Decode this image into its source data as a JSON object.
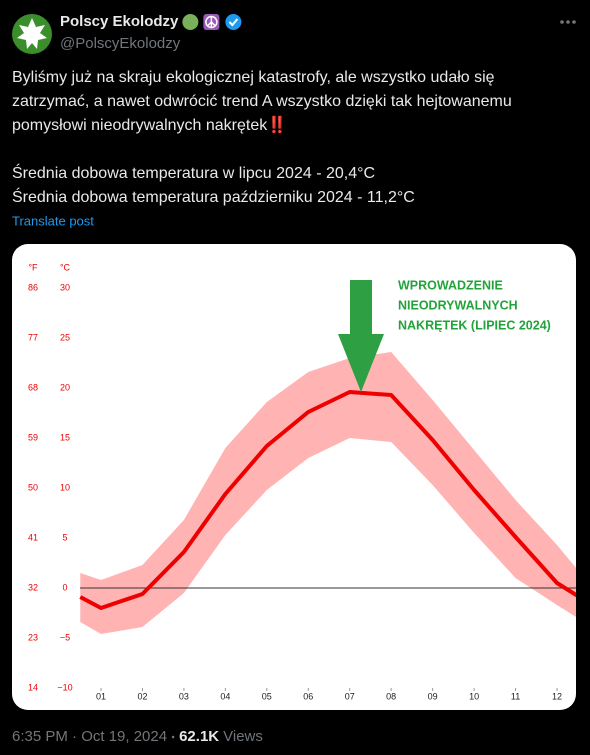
{
  "tweet": {
    "author": "Polscy Ekolodzy",
    "handle": "@PolscyEkolodzy",
    "paragraphs": [
      [
        "Byliśmy już na skraju ekologicznej katastrofy, ale wszystko udało się",
        "zatrzymać, a nawet odwrócić trend A wszystko dzięki tak hejtowanemu",
        "pomysłowi  nieodrywalnych nakrętek‼️"
      ],
      [
        "Średnia dobowa temperatura w lipcu 2024  - 20,4°C",
        "Średnia dobowa temperatura październiku 2024 - 11,2°C"
      ]
    ],
    "translate": "Translate post",
    "timestamp": "6:35 PM · Oct 19, 2024",
    "views_count": "62.1K",
    "views_label": "Views"
  },
  "chart_data": {
    "type": "line",
    "x": [
      0.5,
      1,
      2,
      3,
      4,
      5,
      6,
      7,
      8,
      9,
      10,
      11,
      12,
      12.5
    ],
    "values": [
      -0.9,
      -2,
      -0.6,
      3.6,
      9.4,
      14.2,
      17.6,
      19.6,
      19.3,
      14.8,
      9.8,
      5.1,
      0.5,
      -0.8
    ],
    "band_upper": [
      1.5,
      0.8,
      2.3,
      6.8,
      14,
      18.6,
      21.6,
      23,
      23.6,
      18.8,
      13.8,
      8.8,
      4.3,
      1.8
    ],
    "band_lower": [
      -3.4,
      -4.6,
      -3.9,
      -0.5,
      5.3,
      9.8,
      13,
      15,
      14.6,
      10.3,
      5.5,
      1,
      -1.7,
      -3
    ],
    "color": "#ee0000",
    "band_color": "#ffb3b3",
    "xlim": [
      0.5,
      12.5
    ],
    "xticks": [
      {
        "value": 1,
        "label": "01"
      },
      {
        "value": 2,
        "label": "02"
      },
      {
        "value": 3,
        "label": "03"
      },
      {
        "value": 4,
        "label": "04"
      },
      {
        "value": 5,
        "label": "05"
      },
      {
        "value": 6,
        "label": "06"
      },
      {
        "value": 7,
        "label": "07"
      },
      {
        "value": 8,
        "label": "08"
      },
      {
        "value": 9,
        "label": "09"
      },
      {
        "value": 10,
        "label": "10"
      },
      {
        "value": 11,
        "label": "11"
      },
      {
        "value": 12,
        "label": "12"
      }
    ],
    "ylim": [
      -10,
      30
    ],
    "yticks": [
      {
        "value": -10,
        "label": "−10"
      },
      {
        "value": -5,
        "label": "−5"
      },
      0,
      5,
      10,
      15,
      20,
      25,
      30
    ],
    "y_label": "°C",
    "y2lim": [
      14,
      86
    ],
    "y2ticks": [
      14,
      23,
      32,
      41,
      50,
      59,
      68,
      77,
      86
    ],
    "y2_label": "°F",
    "zero_line": true,
    "annotation": [
      "WPROWADZENIE",
      "NIEODRYWALNYCH",
      "NAKRĘTEK (LIPIEC 2024)"
    ],
    "annotation_color": "#22a33a"
  }
}
